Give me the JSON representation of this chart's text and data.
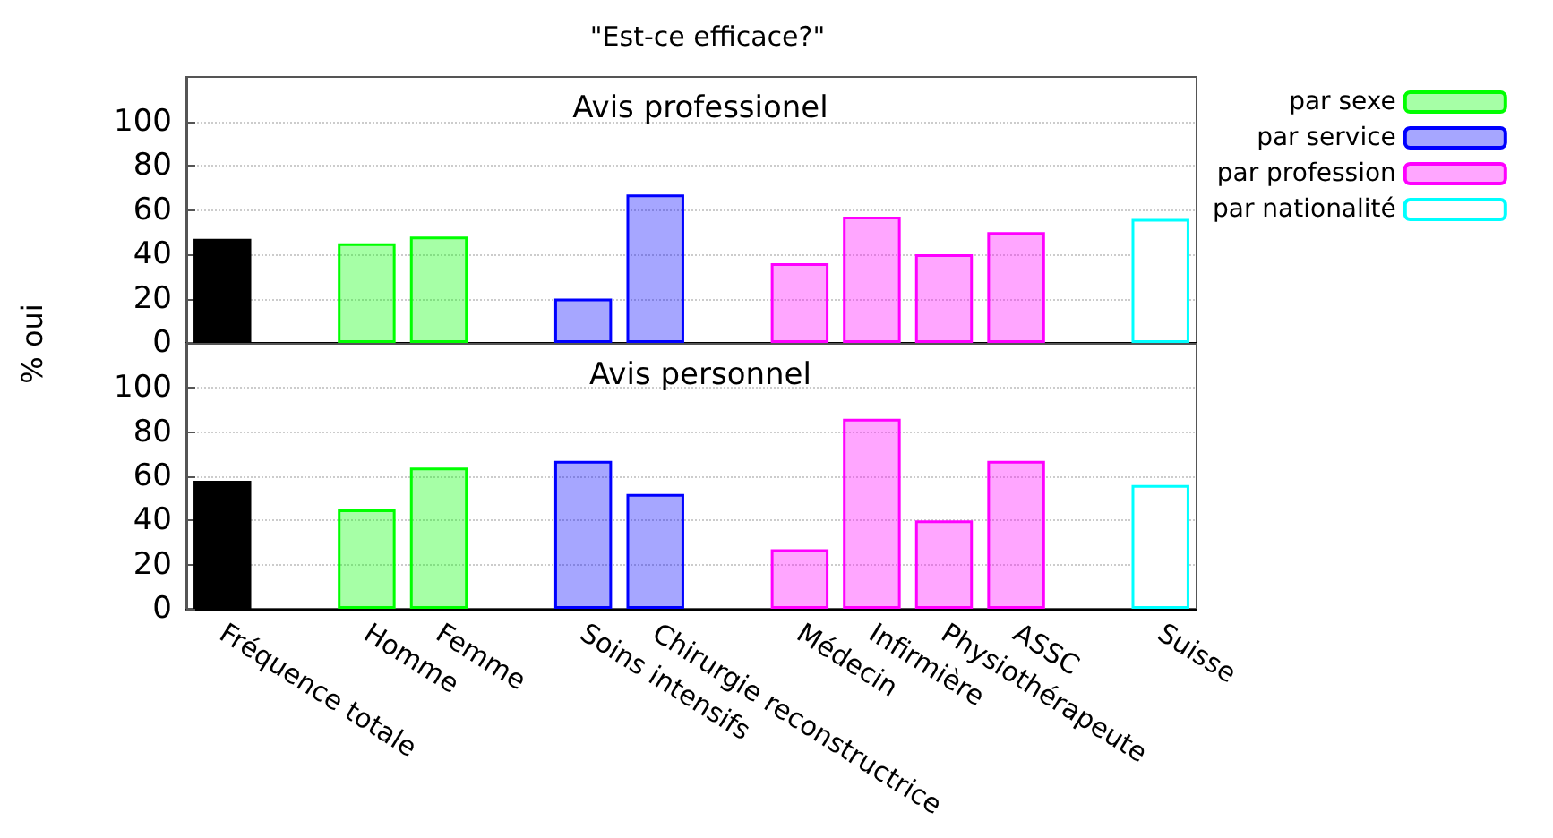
{
  "chart_data": [
    {
      "type": "bar",
      "title": "\"Est-ce efficace?\"",
      "subtitle": "Avis professionel",
      "ylabel": "% oui",
      "series": [
        {
          "color": "#000000",
          "values": [
            47,
            null,
            null,
            null,
            null,
            null,
            null,
            null,
            null,
            null,
            null,
            null,
            null,
            null
          ]
        },
        {
          "name": "par sexe",
          "color": "#00ff00",
          "values": [
            null,
            null,
            45,
            48,
            null,
            null,
            null,
            null,
            null,
            null,
            null,
            null,
            null,
            null
          ]
        },
        {
          "name": "par service",
          "color": "#0000ff",
          "values": [
            null,
            null,
            null,
            null,
            null,
            20,
            67,
            null,
            null,
            null,
            null,
            null,
            null,
            null
          ]
        },
        {
          "name": "par profession",
          "color": "#ff00ff",
          "values": [
            null,
            null,
            null,
            null,
            null,
            null,
            null,
            null,
            36,
            57,
            40,
            50,
            null,
            null
          ]
        },
        {
          "name": "par nationalité",
          "color": "#00ffff",
          "values": [
            null,
            null,
            null,
            null,
            null,
            null,
            null,
            null,
            null,
            null,
            null,
            null,
            null,
            56
          ]
        }
      ],
      "ylim": [
        0,
        120
      ],
      "yticks": [
        0,
        20,
        40,
        60,
        80,
        100
      ],
      "grid": "y",
      "legend": "right",
      "tick_labels": "y"
    },
    {
      "type": "bar",
      "subtitle": "Avis personnel",
      "categories": [
        "Fréquence totale",
        null,
        "Homme",
        "Femme",
        null,
        "Soins intensifs",
        "Chirurgie reconstructrice",
        null,
        "Médecin",
        "Infirmière",
        "Physiothérapeute",
        "ASSC",
        null,
        "Suisse"
      ],
      "series": [
        {
          "color": "#000000",
          "values": [
            58,
            null,
            null,
            null,
            null,
            null,
            null,
            null,
            null,
            null,
            null,
            null,
            null,
            null
          ]
        },
        {
          "color": "#00ff00",
          "values": [
            null,
            null,
            45,
            64,
            null,
            null,
            null,
            null,
            null,
            null,
            null,
            null,
            null,
            null
          ]
        },
        {
          "color": "#0000ff",
          "values": [
            null,
            null,
            null,
            null,
            null,
            67,
            52,
            null,
            null,
            null,
            null,
            null,
            null,
            null
          ]
        },
        {
          "color": "#ff00ff",
          "values": [
            null,
            null,
            null,
            null,
            null,
            null,
            null,
            null,
            27,
            86,
            40,
            67,
            null,
            null
          ]
        },
        {
          "color": "#00ffff",
          "values": [
            null,
            null,
            null,
            null,
            null,
            null,
            null,
            null,
            null,
            null,
            null,
            null,
            null,
            56
          ]
        }
      ],
      "ylim": [
        0,
        120
      ],
      "yticks": [
        0,
        20,
        40,
        60,
        80,
        100
      ],
      "grid": "y"
    }
  ]
}
